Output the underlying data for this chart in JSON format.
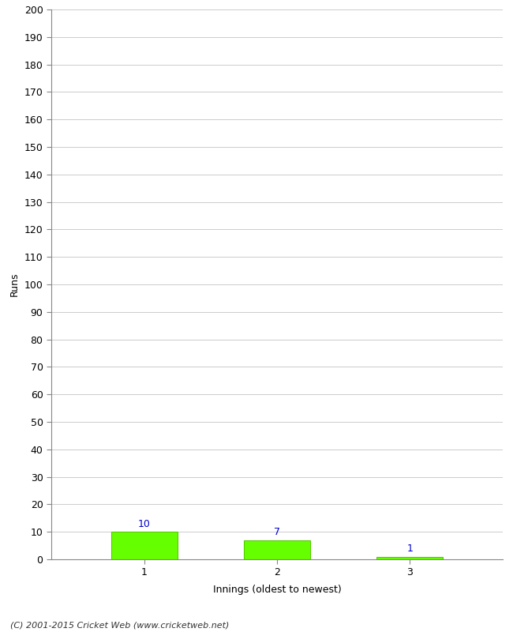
{
  "categories": [
    "1",
    "2",
    "3"
  ],
  "values": [
    10,
    7,
    1
  ],
  "bar_color": "#66ff00",
  "bar_edge_color": "#55cc00",
  "label_color": "#0000cc",
  "ylabel": "Runs",
  "xlabel": "Innings (oldest to newest)",
  "ylim": [
    0,
    200
  ],
  "ytick_step": 10,
  "footnote": "(C) 2001-2015 Cricket Web (www.cricketweb.net)",
  "background_color": "#ffffff",
  "grid_color": "#cccccc",
  "tick_color": "#888888",
  "spine_color": "#888888"
}
